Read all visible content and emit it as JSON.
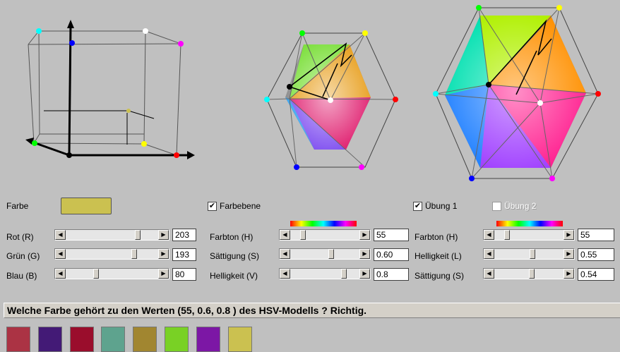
{
  "colors": {
    "current": "#cbc150",
    "history": [
      "#ab3344",
      "#431a76",
      "#9a0d2c",
      "#5ea38e",
      "#a18630",
      "#79d125",
      "#7c17a5",
      "#cbc150"
    ]
  },
  "labels": {
    "farbe": "Farbe",
    "farbebene": "Farbebene",
    "uebung1": "Übung 1",
    "uebung2": "Übung 2"
  },
  "checkboxes": {
    "farbebene": true,
    "uebung1": true,
    "uebung2": false
  },
  "rgb": [
    {
      "label": "Rot (R)",
      "value": "203",
      "level": 203
    },
    {
      "label": "Grün (G)",
      "value": "193",
      "level": 193
    },
    {
      "label": "Blau (B)",
      "value": "80",
      "level": 80
    }
  ],
  "hsv": [
    {
      "label": "Farbton (H)",
      "value": "55",
      "level": 0.153
    },
    {
      "label": "Sättigung (S)",
      "value": "0.60",
      "level": 0.6
    },
    {
      "label": "Helligkeit (V)",
      "value": "0.8",
      "level": 0.8
    }
  ],
  "hls": [
    {
      "label": "Farbton (H)",
      "value": "55",
      "level": 0.153
    },
    {
      "label": "Helligkeit (L)",
      "value": "0.55",
      "level": 0.55
    },
    {
      "label": "Sättigung (S)",
      "value": "0.54",
      "level": 0.54
    }
  ],
  "message": "Welche Farbe gehört zu den Werten (55, 0.6, 0.8 ) des HSV-Modells ? Richtig."
}
